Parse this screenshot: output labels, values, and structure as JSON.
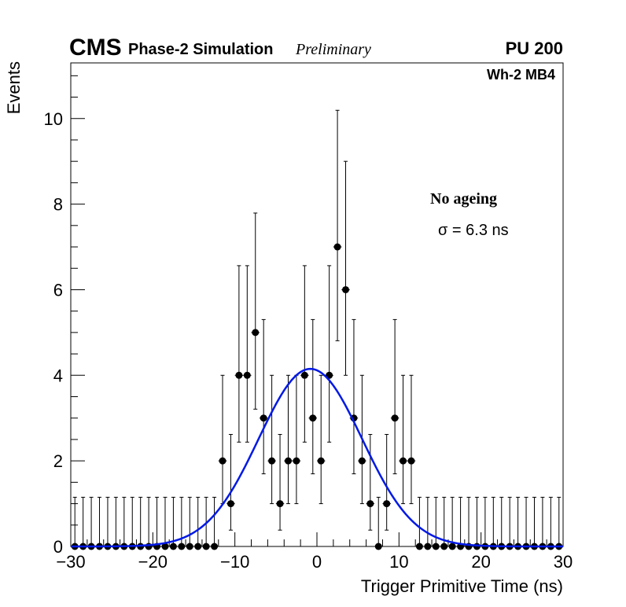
{
  "header": {
    "experiment": "CMS",
    "subtitle": "Phase-2 Simulation",
    "status": "Preliminary",
    "pileup": "PU 200",
    "chamber": "Wh-2 MB4"
  },
  "annotations": {
    "condition": "No ageing",
    "resolution": "σ = 6.3 ns"
  },
  "colors": {
    "fit": "#0019e6",
    "markers": "#000000"
  },
  "chart_data": {
    "type": "scatter",
    "title": "",
    "xlabel": "Trigger Primitive Time (ns)",
    "ylabel": "Events",
    "xlim": [
      -30,
      30
    ],
    "ylim": [
      0,
      11.3
    ],
    "xticks": [
      -30,
      -20,
      -10,
      0,
      10,
      20,
      30
    ],
    "xtick_labels": [
      "−30",
      "−20",
      "−10",
      "0",
      "10",
      "20",
      "30"
    ],
    "yticks": [
      0,
      2,
      4,
      6,
      8,
      10
    ],
    "ytick_labels": [
      "0",
      "2",
      "4",
      "6",
      "8",
      "10"
    ],
    "grid": false,
    "bin_width": 1,
    "series": [
      {
        "x": [
          -29.5,
          -28.5,
          -27.5,
          -26.5,
          -25.5,
          -24.5,
          -23.5,
          -22.5,
          -21.5,
          -20.5,
          -19.5,
          -18.5,
          -17.5,
          -16.5,
          -15.5,
          -14.5,
          -13.5,
          -12.5,
          -11.5,
          -10.5,
          -9.5,
          -8.5,
          -7.5,
          -6.5,
          -5.5,
          -4.5,
          -3.5,
          -2.5,
          -1.5,
          -0.5,
          0.5,
          1.5,
          2.5,
          3.5,
          4.5,
          5.5,
          6.5,
          7.5,
          8.5,
          9.5,
          10.5,
          11.5,
          12.5,
          13.5,
          14.5,
          15.5,
          16.5,
          17.5,
          18.5,
          19.5,
          20.5,
          21.5,
          22.5,
          23.5,
          24.5,
          25.5,
          26.5,
          27.5,
          28.5,
          29.5
        ],
        "values": [
          0,
          0,
          0,
          0,
          0,
          0,
          0,
          0,
          0,
          0,
          0,
          0,
          0,
          0,
          0,
          0,
          0,
          0,
          2,
          1,
          4,
          4,
          5,
          3,
          2,
          1,
          2,
          2,
          4,
          3,
          2,
          4,
          7,
          6,
          3,
          2,
          1,
          0,
          1,
          3,
          2,
          2,
          0,
          0,
          0,
          0,
          0,
          0,
          0,
          0,
          0,
          0,
          0,
          0,
          0,
          0,
          0,
          0,
          0,
          0
        ]
      },
      {
        "type": "line",
        "fit": "gaussian",
        "amplitude": 4.15,
        "mean": -0.8,
        "sigma": 6.3,
        "x_range": [
          -30,
          30
        ]
      }
    ]
  }
}
